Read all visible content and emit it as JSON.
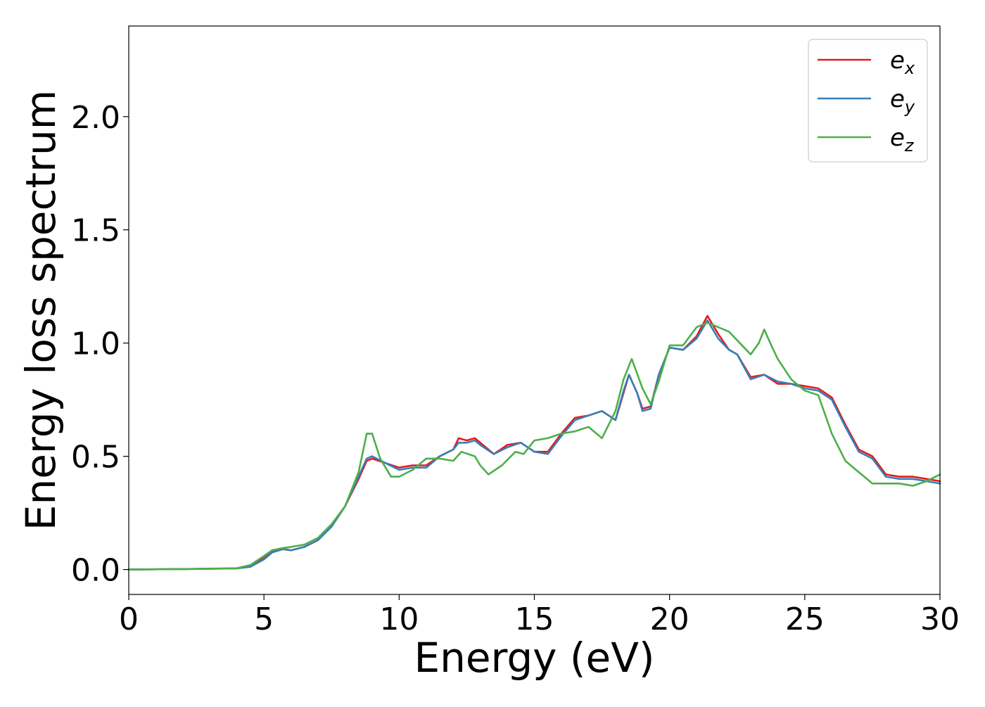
{
  "chart_data": {
    "type": "line",
    "title": "",
    "xlabel": "Energy (eV)",
    "ylabel": "Energy loss spectrum",
    "xlim": [
      0,
      30
    ],
    "ylim": [
      -0.11,
      2.4
    ],
    "xticks": [
      0,
      5,
      10,
      15,
      20,
      25,
      30
    ],
    "xtick_labels": [
      "0",
      "5",
      "10",
      "15",
      "20",
      "25",
      "30"
    ],
    "yticks": [
      0.0,
      0.5,
      1.0,
      1.5,
      2.0
    ],
    "ytick_labels": [
      "0.0",
      "0.5",
      "1.0",
      "1.5",
      "2.0"
    ],
    "grid": false,
    "legend_position": "top-right",
    "series": [
      {
        "name": "e_x",
        "legend_base": "e",
        "legend_sub": "x",
        "color": "#e41a1c",
        "x": [
          0,
          2,
          4,
          4.5,
          5,
          5.3,
          5.7,
          6,
          6.5,
          7,
          7.5,
          8,
          8.5,
          8.8,
          9,
          9.5,
          10,
          10.5,
          11,
          11.5,
          12,
          12.2,
          12.5,
          12.8,
          13,
          13.5,
          14,
          14.5,
          15,
          15.5,
          16,
          16.5,
          17,
          17.5,
          18,
          18.3,
          18.5,
          18.8,
          19,
          19.3,
          19.6,
          20,
          20.5,
          21,
          21.4,
          21.8,
          22.2,
          22.5,
          23,
          23.5,
          24,
          24.5,
          25,
          25.5,
          26,
          26.5,
          27,
          27.5,
          28,
          28.5,
          29,
          29.5,
          30
        ],
        "y": [
          0.0,
          0.002,
          0.005,
          0.015,
          0.05,
          0.08,
          0.09,
          0.085,
          0.1,
          0.13,
          0.19,
          0.28,
          0.4,
          0.48,
          0.49,
          0.47,
          0.45,
          0.46,
          0.46,
          0.5,
          0.53,
          0.58,
          0.57,
          0.58,
          0.56,
          0.51,
          0.55,
          0.56,
          0.52,
          0.52,
          0.6,
          0.67,
          0.68,
          0.7,
          0.66,
          0.78,
          0.86,
          0.78,
          0.71,
          0.72,
          0.86,
          0.98,
          0.97,
          1.03,
          1.12,
          1.04,
          0.97,
          0.95,
          0.85,
          0.86,
          0.82,
          0.82,
          0.81,
          0.8,
          0.76,
          0.64,
          0.53,
          0.5,
          0.42,
          0.41,
          0.41,
          0.4,
          0.39
        ]
      },
      {
        "name": "e_y",
        "legend_base": "e",
        "legend_sub": "y",
        "color": "#377eb8",
        "x": [
          0,
          2,
          4,
          4.5,
          5,
          5.3,
          5.7,
          6,
          6.5,
          7,
          7.5,
          8,
          8.5,
          8.8,
          9,
          9.5,
          10,
          10.5,
          11,
          11.5,
          12,
          12.2,
          12.5,
          12.8,
          13,
          13.5,
          14,
          14.5,
          15,
          15.5,
          16,
          16.5,
          17,
          17.5,
          18,
          18.3,
          18.5,
          18.8,
          19,
          19.3,
          19.6,
          20,
          20.5,
          21,
          21.4,
          21.8,
          22.2,
          22.5,
          23,
          23.5,
          24,
          24.5,
          25,
          25.5,
          26,
          26.5,
          27,
          27.5,
          28,
          28.5,
          29,
          29.5,
          30
        ],
        "y": [
          0.0,
          0.002,
          0.005,
          0.012,
          0.045,
          0.075,
          0.09,
          0.085,
          0.1,
          0.13,
          0.19,
          0.28,
          0.41,
          0.49,
          0.5,
          0.47,
          0.44,
          0.45,
          0.45,
          0.5,
          0.53,
          0.56,
          0.56,
          0.57,
          0.55,
          0.51,
          0.54,
          0.56,
          0.52,
          0.51,
          0.59,
          0.66,
          0.68,
          0.7,
          0.66,
          0.79,
          0.86,
          0.78,
          0.7,
          0.71,
          0.86,
          0.98,
          0.97,
          1.02,
          1.1,
          1.02,
          0.97,
          0.95,
          0.84,
          0.86,
          0.83,
          0.82,
          0.8,
          0.79,
          0.75,
          0.63,
          0.52,
          0.49,
          0.41,
          0.4,
          0.4,
          0.39,
          0.38
        ]
      },
      {
        "name": "e_z",
        "legend_base": "e",
        "legend_sub": "z",
        "color": "#4daf4a",
        "x": [
          0,
          2,
          4,
          4.5,
          5,
          5.3,
          5.7,
          6,
          6.5,
          7,
          7.5,
          8,
          8.5,
          8.8,
          9,
          9.3,
          9.7,
          10,
          10.5,
          11,
          11.5,
          12,
          12.3,
          12.8,
          13,
          13.3,
          13.8,
          14.3,
          14.6,
          15,
          15.5,
          16,
          16.5,
          17,
          17.5,
          18,
          18.3,
          18.6,
          19,
          19.3,
          19.6,
          20,
          20.5,
          21,
          21.4,
          21.8,
          22.2,
          22.6,
          23,
          23.3,
          23.5,
          23.8,
          24,
          24.5,
          25,
          25.5,
          26,
          26.5,
          27,
          27.5,
          28,
          28.5,
          29,
          29.5,
          30
        ],
        "y": [
          0.0,
          0.002,
          0.006,
          0.02,
          0.06,
          0.085,
          0.095,
          0.1,
          0.11,
          0.14,
          0.2,
          0.28,
          0.43,
          0.6,
          0.6,
          0.49,
          0.41,
          0.41,
          0.44,
          0.49,
          0.49,
          0.48,
          0.52,
          0.5,
          0.46,
          0.42,
          0.46,
          0.52,
          0.51,
          0.57,
          0.58,
          0.6,
          0.61,
          0.63,
          0.58,
          0.7,
          0.84,
          0.93,
          0.8,
          0.73,
          0.83,
          0.99,
          0.99,
          1.07,
          1.09,
          1.07,
          1.05,
          1.0,
          0.95,
          1.0,
          1.06,
          0.98,
          0.93,
          0.84,
          0.79,
          0.77,
          0.6,
          0.48,
          0.43,
          0.38,
          0.38,
          0.38,
          0.37,
          0.39,
          0.42
        ]
      }
    ]
  }
}
